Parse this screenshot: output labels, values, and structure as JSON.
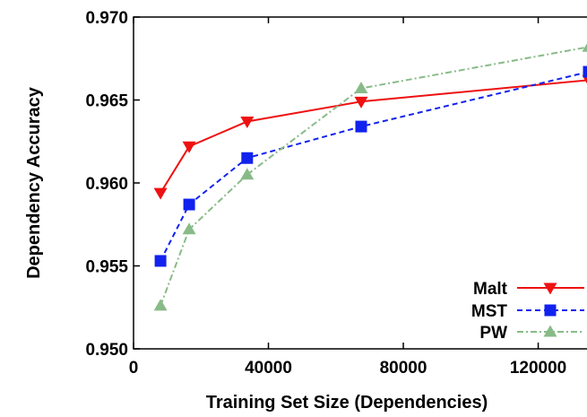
{
  "chart_data": {
    "type": "line",
    "title": "",
    "xlabel": "Training Set Size (Dependencies)",
    "ylabel": "Dependency Accuracy",
    "xlim": [
      0,
      135000
    ],
    "ylim": [
      0.95,
      0.97
    ],
    "xticks": [
      0,
      40000,
      80000,
      120000
    ],
    "xtick_labels": [
      "0",
      "40000",
      "80000",
      "120000"
    ],
    "yticks": [
      0.95,
      0.955,
      0.96,
      0.965,
      0.97
    ],
    "ytick_labels": [
      "0.950",
      "0.955",
      "0.960",
      "0.965",
      "0.970"
    ],
    "grid": false,
    "legend_position": "bottom-right",
    "series": [
      {
        "name": "Malt",
        "color": "#ee1111",
        "line_style": "solid",
        "marker": "triangle-down",
        "x": [
          8000,
          16500,
          33700,
          67500,
          135000
        ],
        "y": [
          0.9594,
          0.9622,
          0.9637,
          0.9649,
          0.9662
        ]
      },
      {
        "name": "MST",
        "color": "#1122ee",
        "line_style": "dashed",
        "marker": "square",
        "x": [
          8000,
          16500,
          33700,
          67500,
          135000
        ],
        "y": [
          0.9553,
          0.9587,
          0.9615,
          0.9634,
          0.9667
        ]
      },
      {
        "name": "PW",
        "color": "#88bb88",
        "line_style": "dash-dot",
        "marker": "triangle-up",
        "x": [
          8000,
          16500,
          33700,
          67500,
          135000
        ],
        "y": [
          0.9526,
          0.9572,
          0.9605,
          0.9657,
          0.9682
        ]
      }
    ]
  }
}
